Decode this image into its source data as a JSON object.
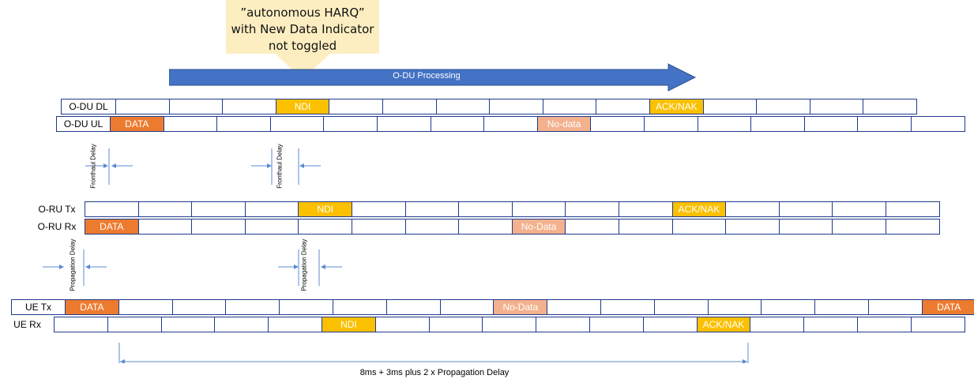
{
  "callout": {
    "lines": [
      "”autonomous HARQ”",
      "with New Data Indicator",
      "not toggled"
    ],
    "color": "#fdeec1"
  },
  "processing_arrow": {
    "label": "O-DU Processing",
    "color": "#4472c4"
  },
  "rows": {
    "odu_dl": {
      "label": "O-DU DL",
      "cells": [
        "",
        "",
        "",
        "NDI",
        "",
        "",
        "",
        "",
        "",
        "",
        "ACK/NAK",
        "",
        "",
        "",
        ""
      ],
      "kinds": [
        "",
        "",
        "",
        "ndi",
        "",
        "",
        "",
        "",
        "",
        "",
        "ndi",
        "",
        "",
        "",
        ""
      ]
    },
    "odu_ul": {
      "label": "O-DU UL",
      "cells": [
        "DATA",
        "",
        "",
        "",
        "",
        "",
        "",
        "",
        "No-data",
        "",
        "",
        "",
        "",
        "",
        "",
        ""
      ],
      "kinds": [
        "data",
        "",
        "",
        "",
        "",
        "",
        "",
        "",
        "nodata",
        "",
        "",
        "",
        "",
        "",
        "",
        ""
      ]
    },
    "oru_tx": {
      "label": "O-RU Tx",
      "cells": [
        "",
        "",
        "",
        "",
        "NDI",
        "",
        "",
        "",
        "",
        "",
        "",
        "ACK/NAK",
        "",
        "",
        "",
        ""
      ],
      "kinds": [
        "",
        "",
        "",
        "",
        "ndi",
        "",
        "",
        "",
        "",
        "",
        "",
        "ndi",
        "",
        "",
        "",
        ""
      ]
    },
    "oru_rx": {
      "label": "O-RU Rx",
      "cells": [
        "DATA",
        "",
        "",
        "",
        "",
        "",
        "",
        "",
        "No-Data",
        "",
        "",
        "",
        "",
        "",
        "",
        ""
      ],
      "kinds": [
        "data",
        "",
        "",
        "",
        "",
        "",
        "",
        "",
        "nodata",
        "",
        "",
        "",
        "",
        "",
        "",
        ""
      ]
    },
    "ue_tx": {
      "label": "UE Tx",
      "cells": [
        "DATA",
        "",
        "",
        "",
        "",
        "",
        "",
        "",
        "No-Data",
        "",
        "",
        "",
        "",
        "",
        "",
        "",
        "DATA"
      ],
      "kinds": [
        "data",
        "",
        "",
        "",
        "",
        "",
        "",
        "",
        "nodata",
        "",
        "",
        "",
        "",
        "",
        "",
        "",
        "data"
      ]
    },
    "ue_rx": {
      "label": "UE Rx",
      "cells": [
        "",
        "",
        "",
        "",
        "",
        "NDI",
        "",
        "",
        "",
        "",
        "",
        "",
        "ACK/NAK",
        "",
        "",
        "",
        ""
      ],
      "kinds": [
        "",
        "",
        "",
        "",
        "",
        "ndi",
        "",
        "",
        "",
        "",
        "",
        "",
        "ndi",
        "",
        "",
        "",
        ""
      ]
    }
  },
  "delays": {
    "fronthaul": "Fronthaul Delay",
    "propagation": "Propagation Delay"
  },
  "span_label": "8ms + 3ms plus 2 x Propagation Delay",
  "colors": {
    "line": "#1f3a8a",
    "arrow": "#4472c4",
    "data": "#ec7b30",
    "ndi": "#fbc000",
    "nodata": "#f3b18d"
  }
}
